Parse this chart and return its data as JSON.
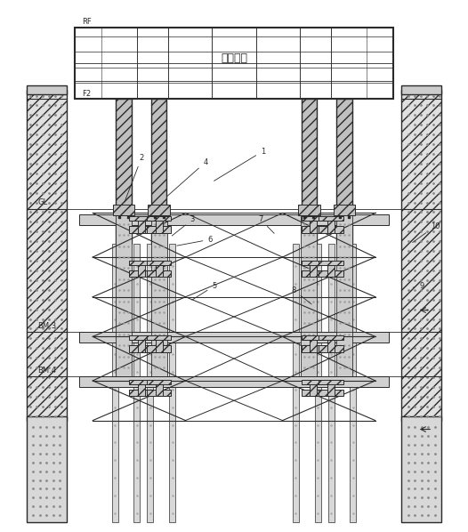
{
  "bg_color": "#ffffff",
  "line_color": "#2a2a2a",
  "hatch_color": "#555555",
  "fill_light": "#d0d0d0",
  "fill_concrete": "#b8b8b8",
  "fill_stipple": "#cccccc",
  "title_text": "既有建筑",
  "label_RF": "RF",
  "label_F2": "F2",
  "label_GL": "GL",
  "label_BM3": "BM.3",
  "label_BM4": "BM.4",
  "labels": {
    "1": "1",
    "2": "2",
    "3": "3",
    "4": "4",
    "5": "5",
    "6": "6",
    "7": "7",
    "8": "8",
    "9": "9",
    "10": "10"
  },
  "figsize": [
    5.26,
    5.98
  ],
  "dpi": 100
}
